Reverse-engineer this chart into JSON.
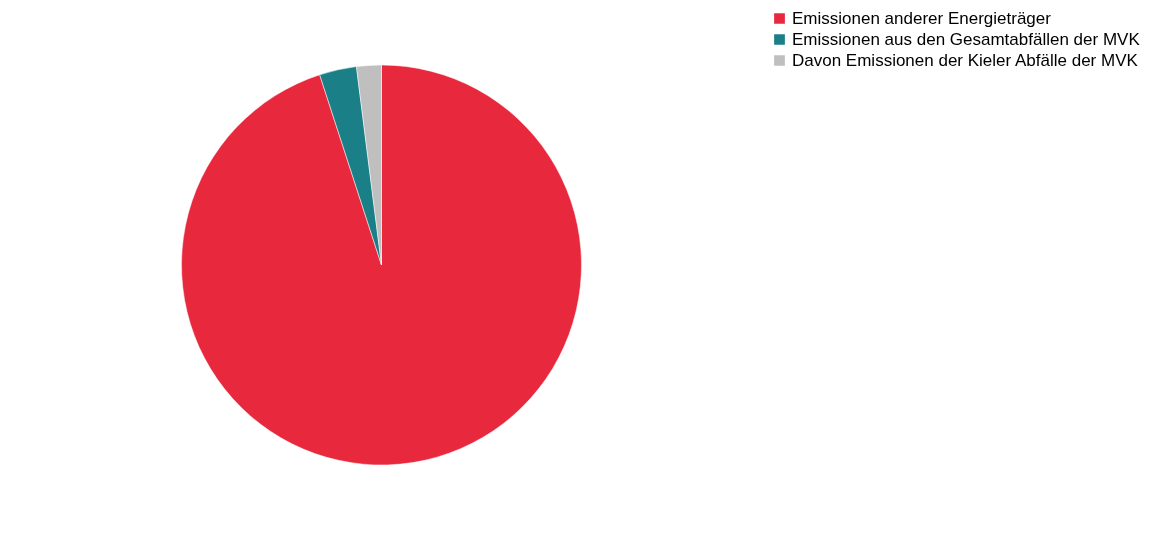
{
  "chart_data": {
    "type": "pie",
    "categories": [
      "Emissionen anderer Energieträger",
      "Emissionen aus den Gesamtabfällen der MVK",
      "Davon Emissionen der Kieler Abfälle der MVK"
    ],
    "values": [
      95,
      3,
      2
    ],
    "colors": [
      "#e8283c",
      "#1a7f86",
      "#bfbfbf"
    ],
    "legend": "right"
  }
}
